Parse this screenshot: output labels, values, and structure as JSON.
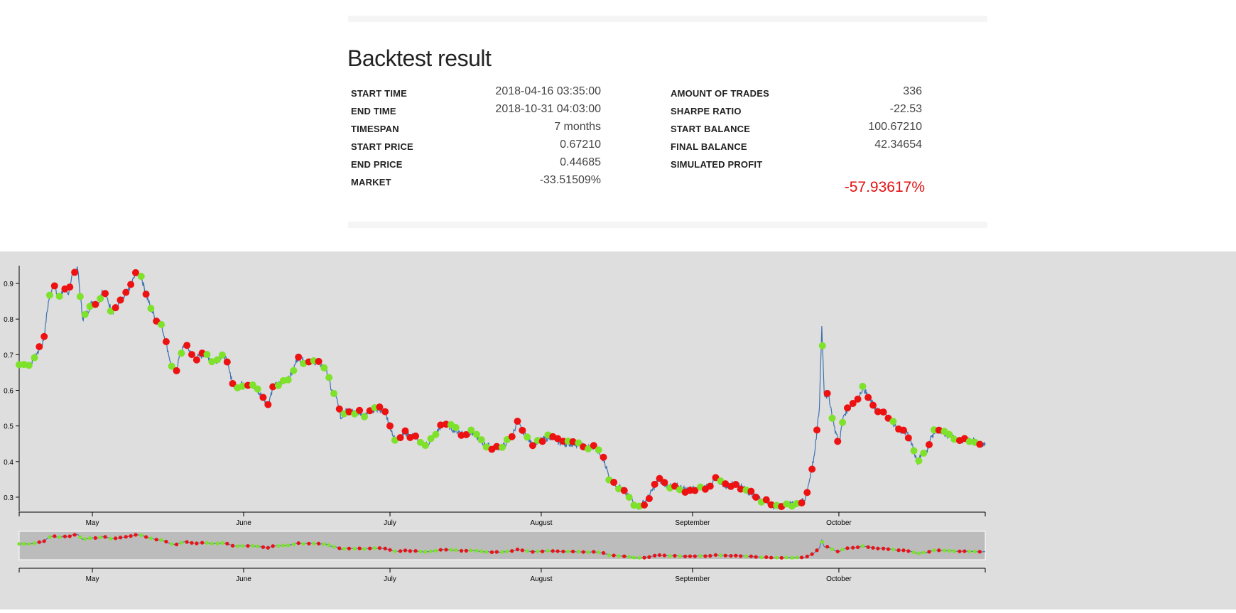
{
  "header": {
    "title": "Backtest result"
  },
  "stats_left": [
    {
      "key": "START TIME",
      "value": "2018-04-16 03:35:00"
    },
    {
      "key": "END TIME",
      "value": "2018-10-31 04:03:00"
    },
    {
      "key": "TIMESPAN",
      "value": "7 months"
    },
    {
      "key": "START PRICE",
      "value": "0.67210"
    },
    {
      "key": "END PRICE",
      "value": "0.44685"
    },
    {
      "key": "MARKET",
      "value": "-33.51509%"
    }
  ],
  "stats_right": [
    {
      "key": "AMOUNT OF TRADES",
      "value": "336"
    },
    {
      "key": "SHARPE RATIO",
      "value": "-22.53"
    },
    {
      "key": "START BALANCE",
      "value": "100.67210"
    },
    {
      "key": "FINAL BALANCE",
      "value": "42.34654"
    },
    {
      "key": "SIMULATED PROFIT",
      "value": ""
    }
  ],
  "simulated_profit": "-57.93617%",
  "colors": {
    "line": "#3f72af",
    "buy": "#7ee12a",
    "sell": "#ee1111",
    "profit": "#e31111",
    "brush": "#bcbcbc"
  },
  "chart_data": {
    "type": "line",
    "title": "",
    "xlabel": "",
    "ylabel": "",
    "x_range": [
      "2018-04-16",
      "2018-10-31"
    ],
    "ylim": [
      0.26,
      0.95
    ],
    "y_ticks": [
      "0.3",
      "0.4",
      "0.5",
      "0.6",
      "0.7",
      "0.8",
      "0.9"
    ],
    "x_ticks": [
      {
        "label": "May",
        "date": "2018-05-01"
      },
      {
        "label": "June",
        "date": "2018-06-01"
      },
      {
        "label": "July",
        "date": "2018-07-01"
      },
      {
        "label": "August",
        "date": "2018-08-01"
      },
      {
        "label": "September",
        "date": "2018-09-01"
      },
      {
        "label": "October",
        "date": "2018-10-01"
      }
    ],
    "series": [
      {
        "values": [
          [
            "2018-04-16",
            0.672
          ],
          [
            "2018-04-18",
            0.67
          ],
          [
            "2018-04-20",
            0.71
          ],
          [
            "2018-04-21",
            0.74
          ],
          [
            "2018-04-22",
            0.85
          ],
          [
            "2018-04-23",
            0.9
          ],
          [
            "2018-04-24",
            0.86
          ],
          [
            "2018-04-25",
            0.88
          ],
          [
            "2018-04-26",
            0.87
          ],
          [
            "2018-04-27",
            0.93
          ],
          [
            "2018-04-28",
            0.94
          ],
          [
            "2018-04-29",
            0.8
          ],
          [
            "2018-04-30",
            0.82
          ],
          [
            "2018-05-01",
            0.85
          ],
          [
            "2018-05-02",
            0.84
          ],
          [
            "2018-05-03",
            0.88
          ],
          [
            "2018-05-04",
            0.86
          ],
          [
            "2018-05-05",
            0.82
          ],
          [
            "2018-05-07",
            0.85
          ],
          [
            "2018-05-08",
            0.87
          ],
          [
            "2018-05-09",
            0.9
          ],
          [
            "2018-05-10",
            0.93
          ],
          [
            "2018-05-11",
            0.92
          ],
          [
            "2018-05-12",
            0.87
          ],
          [
            "2018-05-13",
            0.83
          ],
          [
            "2018-05-14",
            0.8
          ],
          [
            "2018-05-15",
            0.79
          ],
          [
            "2018-05-16",
            0.74
          ],
          [
            "2018-05-17",
            0.68
          ],
          [
            "2018-05-18",
            0.65
          ],
          [
            "2018-05-19",
            0.7
          ],
          [
            "2018-05-20",
            0.73
          ],
          [
            "2018-05-22",
            0.69
          ],
          [
            "2018-05-24",
            0.7
          ],
          [
            "2018-05-26",
            0.68
          ],
          [
            "2018-05-28",
            0.7
          ],
          [
            "2018-05-29",
            0.66
          ],
          [
            "2018-05-30",
            0.61
          ],
          [
            "2018-06-01",
            0.62
          ],
          [
            "2018-06-03",
            0.61
          ],
          [
            "2018-06-05",
            0.58
          ],
          [
            "2018-06-06",
            0.56
          ],
          [
            "2018-06-07",
            0.61
          ],
          [
            "2018-06-09",
            0.62
          ],
          [
            "2018-06-11",
            0.65
          ],
          [
            "2018-06-12",
            0.69
          ],
          [
            "2018-06-14",
            0.68
          ],
          [
            "2018-06-16",
            0.68
          ],
          [
            "2018-06-18",
            0.66
          ],
          [
            "2018-06-19",
            0.6
          ],
          [
            "2018-06-20",
            0.58
          ],
          [
            "2018-06-21",
            0.52
          ],
          [
            "2018-06-22",
            0.55
          ],
          [
            "2018-06-24",
            0.54
          ],
          [
            "2018-06-26",
            0.53
          ],
          [
            "2018-06-28",
            0.55
          ],
          [
            "2018-06-30",
            0.54
          ],
          [
            "2018-07-01",
            0.5
          ],
          [
            "2018-07-02",
            0.46
          ],
          [
            "2018-07-04",
            0.48
          ],
          [
            "2018-07-06",
            0.47
          ],
          [
            "2018-07-08",
            0.44
          ],
          [
            "2018-07-10",
            0.47
          ],
          [
            "2018-07-12",
            0.51
          ],
          [
            "2018-07-14",
            0.49
          ],
          [
            "2018-07-16",
            0.48
          ],
          [
            "2018-07-18",
            0.48
          ],
          [
            "2018-07-20",
            0.45
          ],
          [
            "2018-07-22",
            0.44
          ],
          [
            "2018-07-24",
            0.44
          ],
          [
            "2018-07-26",
            0.47
          ],
          [
            "2018-07-27",
            0.51
          ],
          [
            "2018-07-28",
            0.49
          ],
          [
            "2018-07-30",
            0.45
          ],
          [
            "2018-08-01",
            0.46
          ],
          [
            "2018-08-03",
            0.47
          ],
          [
            "2018-08-05",
            0.45
          ],
          [
            "2018-08-08",
            0.45
          ],
          [
            "2018-08-10",
            0.44
          ],
          [
            "2018-08-12",
            0.44
          ],
          [
            "2018-08-14",
            0.4
          ],
          [
            "2018-08-15",
            0.35
          ],
          [
            "2018-08-17",
            0.33
          ],
          [
            "2018-08-19",
            0.3
          ],
          [
            "2018-08-21",
            0.27
          ],
          [
            "2018-08-23",
            0.3
          ],
          [
            "2018-08-25",
            0.35
          ],
          [
            "2018-08-27",
            0.33
          ],
          [
            "2018-08-29",
            0.33
          ],
          [
            "2018-08-31",
            0.32
          ],
          [
            "2018-09-02",
            0.33
          ],
          [
            "2018-09-04",
            0.33
          ],
          [
            "2018-09-06",
            0.35
          ],
          [
            "2018-09-08",
            0.33
          ],
          [
            "2018-09-10",
            0.34
          ],
          [
            "2018-09-12",
            0.32
          ],
          [
            "2018-09-14",
            0.3
          ],
          [
            "2018-09-16",
            0.29
          ],
          [
            "2018-09-18",
            0.27
          ],
          [
            "2018-09-20",
            0.28
          ],
          [
            "2018-09-22",
            0.28
          ],
          [
            "2018-09-24",
            0.29
          ],
          [
            "2018-09-25",
            0.35
          ],
          [
            "2018-09-26",
            0.42
          ],
          [
            "2018-09-27",
            0.55
          ],
          [
            "2018-09-27T12:00",
            0.78
          ],
          [
            "2018-09-28",
            0.59
          ],
          [
            "2018-09-29",
            0.58
          ],
          [
            "2018-09-30",
            0.5
          ],
          [
            "2018-10-01",
            0.45
          ],
          [
            "2018-10-02",
            0.53
          ],
          [
            "2018-10-03",
            0.55
          ],
          [
            "2018-10-05",
            0.58
          ],
          [
            "2018-10-06",
            0.61
          ],
          [
            "2018-10-07",
            0.58
          ],
          [
            "2018-10-09",
            0.54
          ],
          [
            "2018-10-11",
            0.53
          ],
          [
            "2018-10-13",
            0.49
          ],
          [
            "2018-10-15",
            0.48
          ],
          [
            "2018-10-16",
            0.45
          ],
          [
            "2018-10-17",
            0.4
          ],
          [
            "2018-10-18",
            0.42
          ],
          [
            "2018-10-19",
            0.43
          ],
          [
            "2018-10-20",
            0.47
          ],
          [
            "2018-10-21",
            0.49
          ],
          [
            "2018-10-22",
            0.48
          ],
          [
            "2018-10-24",
            0.47
          ],
          [
            "2018-10-26",
            0.46
          ],
          [
            "2018-10-28",
            0.46
          ],
          [
            "2018-10-30",
            0.45
          ],
          [
            "2018-10-31",
            0.447
          ]
        ]
      }
    ],
    "brush_y_range": [
      0.26,
      0.95
    ]
  }
}
